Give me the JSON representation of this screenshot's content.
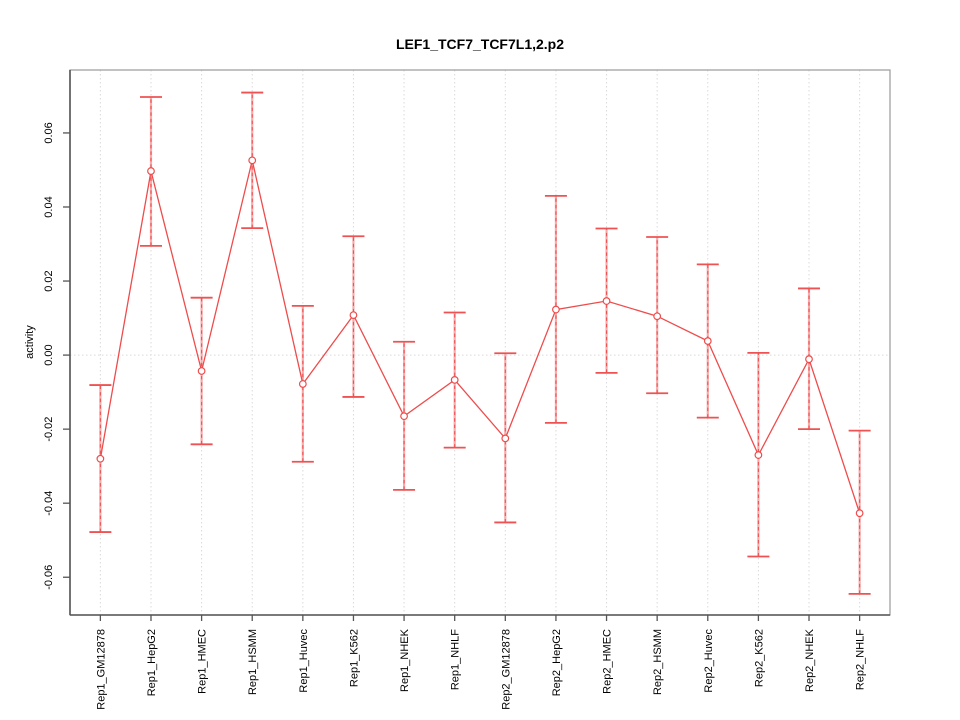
{
  "chart_data": {
    "type": "line",
    "title": "LEF1_TCF7_TCF7L1,2.p2",
    "xlabel": "",
    "ylabel": "activity",
    "legend_position": "none",
    "point_style": "open-circle",
    "grid": {
      "vertical_dotted": true,
      "zero_line_dotted": true,
      "horizontal": false
    },
    "categories": [
      "Rep1_GM12878",
      "Rep1_HepG2",
      "Rep1_HMEC",
      "Rep1_HSMM",
      "Rep1_Huvec",
      "Rep1_K562",
      "Rep1_NHEK",
      "Rep1_NHLF",
      "Rep2_GM12878",
      "Rep2_HepG2",
      "Rep2_HMEC",
      "Rep2_HSMM",
      "Rep2_Huvec",
      "Rep2_K562",
      "Rep2_NHEK",
      "Rep2_NHLF"
    ],
    "series": [
      {
        "name": "activity",
        "values": [
          -0.028,
          0.0497,
          -0.0043,
          0.0526,
          -0.0078,
          0.0108,
          -0.0165,
          -0.0067,
          -0.0225,
          0.0123,
          0.0146,
          0.0105,
          0.0038,
          -0.027,
          -0.0011,
          -0.0427
        ],
        "error_low": [
          -0.0478,
          0.0295,
          -0.0241,
          0.0343,
          -0.0288,
          -0.0113,
          -0.0364,
          -0.025,
          -0.0452,
          -0.0183,
          -0.0048,
          -0.0103,
          -0.0169,
          -0.0544,
          -0.02,
          -0.0645
        ],
        "error_high": [
          -0.0081,
          0.0697,
          0.0155,
          0.0709,
          0.0133,
          0.0321,
          0.0036,
          0.0115,
          0.0005,
          0.043,
          0.0342,
          0.0319,
          0.0245,
          0.0006,
          0.018,
          -0.0204
        ]
      }
    ],
    "yticks": [
      "0.06",
      "0.04",
      "0.02",
      "0.00",
      "-0.02",
      "-0.04",
      "-0.06"
    ],
    "ytick_values": [
      0.06,
      0.04,
      0.02,
      0.0,
      -0.02,
      -0.04,
      -0.06
    ],
    "ylim": [
      -0.0702,
      0.077
    ],
    "xlim": [
      0.4,
      16.6
    ],
    "colors": {
      "series": "#ee4c4c",
      "error_bar": "#f7abab",
      "error_bar_dash": "#ee5252",
      "grid": "#d9d9d9",
      "axis": "#555555",
      "box": "#999999",
      "text": "#000000",
      "background": "#ffffff"
    }
  }
}
